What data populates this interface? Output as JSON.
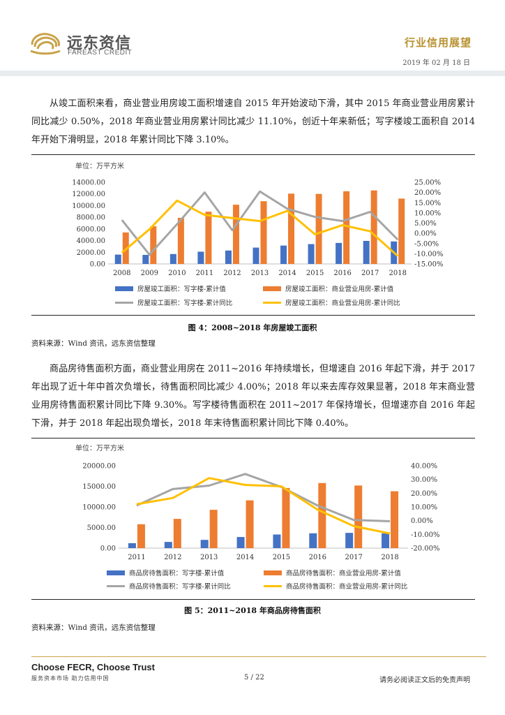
{
  "header": {
    "logo_cn": "远东资信",
    "logo_en": "FAREAST CREDIT",
    "title": "行业信用展望",
    "date": "2019 年 02 月 18 日"
  },
  "paragraphs": {
    "p1": "从竣工面积来看，商业营业用房竣工面积增速自 2015 年开始波动下滑，其中 2015 年商业营业用房累计同比减少 0.50%，2018 年商业营业用房累计同比减少 11.10%，创近十年来新低；写字楼竣工面积自 2014 年开始下滑明显，2018 年累计同比下降 3.10%。",
    "p2": "商品房待售面积方面，商业营业用房在 2011~2016 年持续增长，但增速自 2016 年起下滑，并于 2017 年出现了近十年中首次负增长，待售面积同比减少 4.00%；2018 年以来去库存效果显著，2018 年末商业营业用房待售面积累计同比下降 9.30%。写字楼待售面积在 2011~2017 年保持增长，但增速亦自 2016 年起下滑，并于 2018 年起出现负增长，2018 年末待售面积累计同比下降 0.40%。"
  },
  "figures": {
    "fig4_caption": "图 4：2008~2018 年房屋竣工面积",
    "fig5_caption": "图 5：2011~2018 年商品房待售面积",
    "source1": "资料来源：Wind 资讯，远东资信整理",
    "source2": "资料来源：Wind 资讯，远东资信整理"
  },
  "footer": {
    "slogan": "Choose FECR, Choose Trust",
    "sub": "服务资本市场 助力信用中国",
    "page": "5 / 22",
    "disclaimer": "请务必阅读正文后的免责声明"
  },
  "colors": {
    "blue": "#4472c4",
    "orange": "#ed7d31",
    "gray": "#a5a5a5",
    "yellow": "#ffc000",
    "gold": "#b8912f"
  },
  "chart_data": [
    {
      "type": "bar",
      "unit_label": "单位：万平方米",
      "categories": [
        "2008",
        "2009",
        "2010",
        "2011",
        "2012",
        "2013",
        "2014",
        "2015",
        "2016",
        "2017",
        "2018"
      ],
      "y_left": {
        "min": 0,
        "max": 14000,
        "step": 2000,
        "ticks": [
          "0.00",
          "2000.00",
          "4000.00",
          "6000.00",
          "8000.00",
          "10000.00",
          "12000.00",
          "14000.00"
        ]
      },
      "y_right": {
        "min": -15,
        "max": 25,
        "step": 5,
        "ticks": [
          "-15.00%",
          "-10.00%",
          "-5.00%",
          "0.00%",
          "5.00%",
          "10.00%",
          "15.00%",
          "20.00%",
          "25.00%"
        ]
      },
      "series": [
        {
          "name": "房屋竣工面积：写字楼-累计值",
          "kind": "bar",
          "axis": "left",
          "color": "#4472c4",
          "values": [
            1600,
            1550,
            1700,
            2100,
            2300,
            2800,
            3150,
            3400,
            3600,
            3950,
            3850
          ]
        },
        {
          "name": "房屋竣工面积：商业营业用房-累计值",
          "kind": "bar",
          "axis": "left",
          "color": "#ed7d31",
          "values": [
            5400,
            6450,
            7900,
            8950,
            10150,
            10750,
            12050,
            12000,
            12450,
            12600,
            11200
          ]
        },
        {
          "name": "房屋竣工面积：写字楼-累计同比",
          "kind": "line",
          "axis": "right",
          "color": "#a5a5a5",
          "values": [
            6.5,
            -10.5,
            4.5,
            20.0,
            1.5,
            20.5,
            12.0,
            8.0,
            6.0,
            10.5,
            -3.1
          ]
        },
        {
          "name": "房屋竣工面积：商业营业用房-累计同比",
          "kind": "line",
          "axis": "right",
          "color": "#ffc000",
          "values": [
            -9.5,
            2.0,
            16.0,
            9.0,
            7.5,
            6.0,
            11.0,
            -0.5,
            4.0,
            1.0,
            -11.1
          ]
        }
      ]
    },
    {
      "type": "bar",
      "unit_label": "单位：万平方米",
      "categories": [
        "2011",
        "2012",
        "2013",
        "2014",
        "2015",
        "2016",
        "2017",
        "2018"
      ],
      "y_left": {
        "min": 0,
        "max": 20000,
        "step": 5000,
        "ticks": [
          "0.00",
          "5000.00",
          "10000.00",
          "15000.00",
          "20000.00"
        ]
      },
      "y_right": {
        "min": -20,
        "max": 40,
        "step": 10,
        "ticks": [
          "-20.00%",
          "-10.00%",
          "0.00%",
          "10.00%",
          "20.00%",
          "30.00%",
          "40.00%"
        ]
      },
      "series": [
        {
          "name": "商品房待售面积：写字楼-累计值",
          "kind": "bar",
          "axis": "left",
          "color": "#4472c4",
          "values": [
            1200,
            1500,
            2000,
            2700,
            3300,
            3600,
            3700,
            3600
          ]
        },
        {
          "name": "商品房待售面积：商业营业用房-累计值",
          "kind": "bar",
          "axis": "left",
          "color": "#ed7d31",
          "values": [
            5800,
            7100,
            9300,
            11600,
            14600,
            15800,
            15200,
            13800
          ]
        },
        {
          "name": "商品房待售面积：写字楼-累计同比",
          "kind": "line",
          "axis": "right",
          "color": "#a5a5a5",
          "values": [
            11.0,
            23.0,
            25.5,
            34.0,
            24.5,
            11.0,
            0.5,
            -0.4
          ]
        },
        {
          "name": "商品房待售面积：商业营业用房-累计同比",
          "kind": "line",
          "axis": "right",
          "color": "#ffc000",
          "values": [
            12.0,
            16.5,
            31.0,
            26.0,
            25.0,
            8.0,
            -4.0,
            -9.3
          ]
        }
      ]
    }
  ]
}
